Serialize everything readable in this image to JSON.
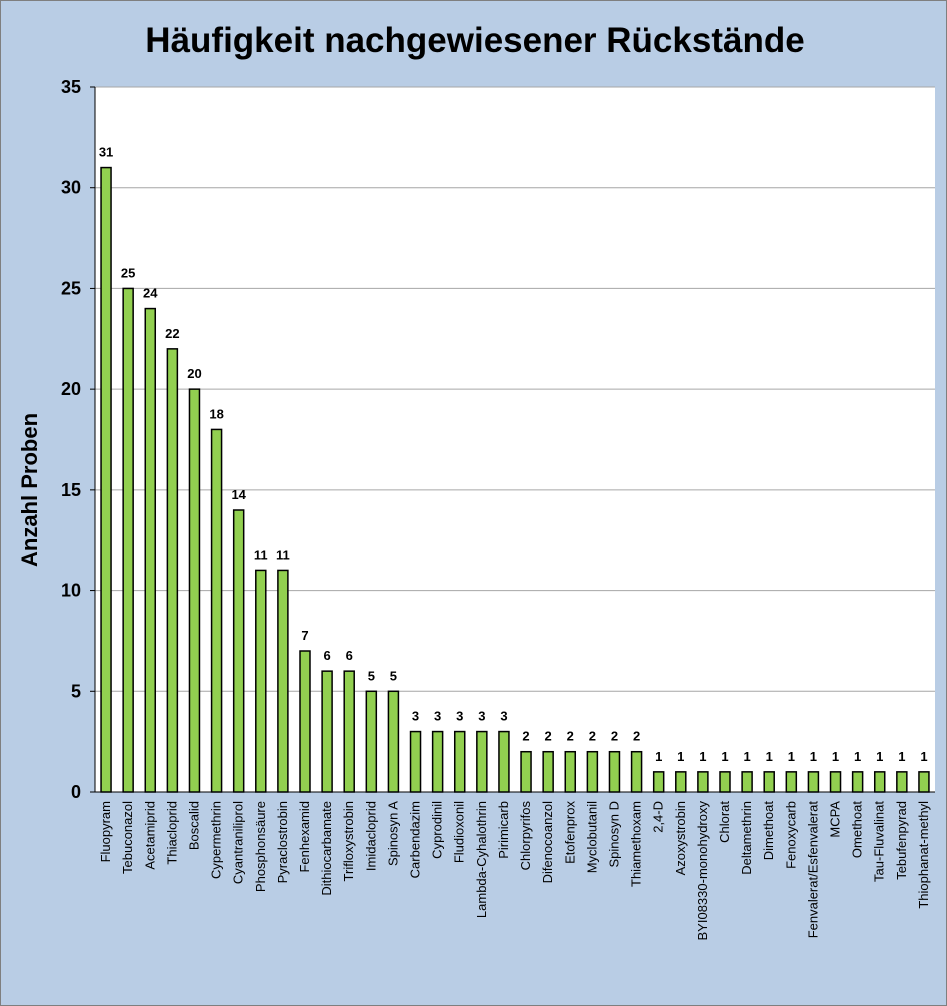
{
  "chart_data": {
    "type": "bar",
    "title": "Häufigkeit nachgewiesener Rückstände",
    "ylabel": "Anzahl Proben",
    "xlabel": "",
    "ylim": [
      0,
      35
    ],
    "yticks": [
      0,
      5,
      10,
      15,
      20,
      25,
      30,
      35
    ],
    "grid": "horizontal",
    "legend": "none",
    "colors": {
      "bar_fill": "#92d050",
      "bar_stroke": "#000000",
      "plot_bg": "#ffffff",
      "outer_bg": "#b9cde5",
      "grid": "#a6a6a6"
    },
    "categories": [
      "Fluopyram",
      "Tebuconazol",
      "Acetamiprid",
      "Thiacloprid",
      "Boscalid",
      "Cypermethrin",
      "Cyantraniliprol",
      "Phosphonsäure",
      "Pyraclostrobin",
      "Fenhexamid",
      "Dithiocarbamate",
      "Trifloxystrobin",
      "Imidacloprid",
      "Spinosyn A",
      "Carbendazim",
      "Cyprodinil",
      "Fludioxonil",
      "Lambda-Cyhalothrin",
      "Pirimicarb",
      "Chlorpyrifos",
      "Difenocoanzol",
      "Etofenprox",
      "Myclobutanil",
      "Spinosyn D",
      "Thiamethoxam",
      "2,4-D",
      "Azoxystrobin",
      "BYI08330-monohydroxy",
      "Chlorat",
      "Deltamethrin",
      "Dimethoat",
      "Fenoxycarb",
      "Fenvalerat/Esfenvalerat",
      "MCPA",
      "Omethoat",
      "Tau-Fluvalinat",
      "Tebufenpyrad",
      "Thiophanat-methyl"
    ],
    "values": [
      31,
      25,
      24,
      22,
      20,
      18,
      14,
      11,
      11,
      7,
      6,
      6,
      5,
      5,
      3,
      3,
      3,
      3,
      3,
      2,
      2,
      2,
      2,
      2,
      2,
      1,
      1,
      1,
      1,
      1,
      1,
      1,
      1,
      1,
      1,
      1,
      1,
      1
    ]
  }
}
